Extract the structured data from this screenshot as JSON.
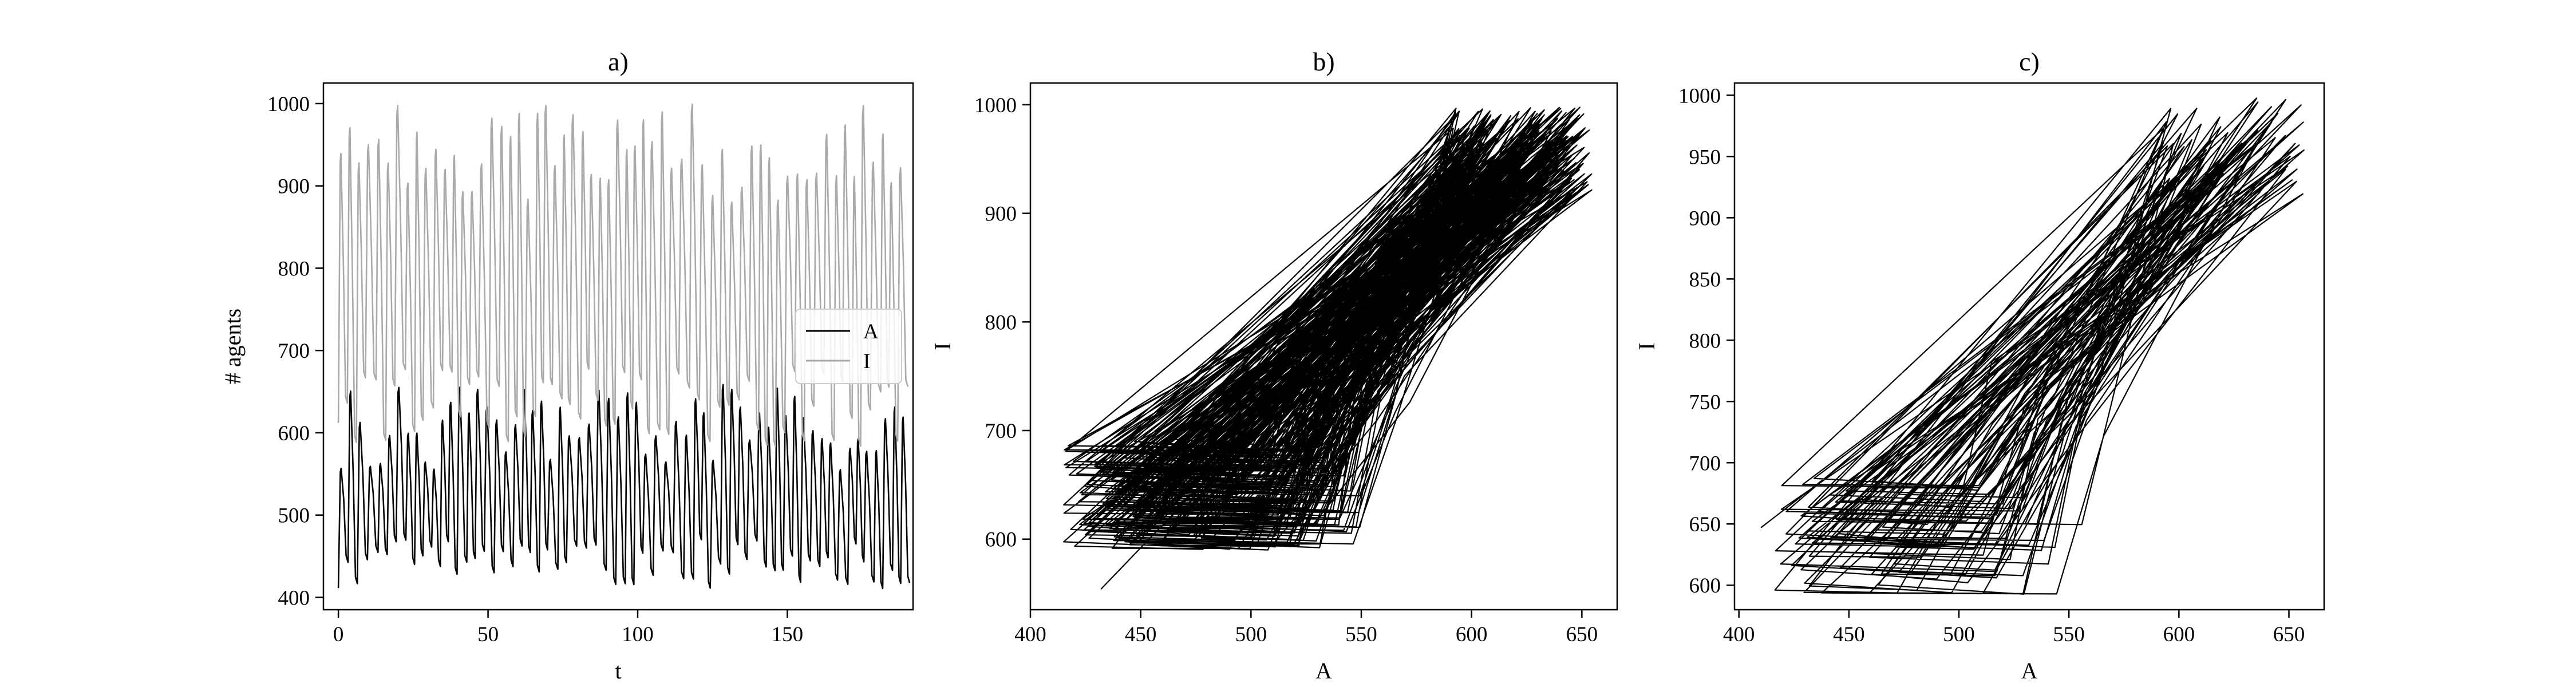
{
  "chart_data": [
    {
      "type": "line",
      "title": "a)",
      "xlabel": "t",
      "ylabel": "# agents",
      "xlim": [
        -5,
        192
      ],
      "ylim": [
        385,
        1025
      ],
      "xticks": [
        0,
        50,
        100,
        150
      ],
      "yticks": [
        400,
        500,
        600,
        700,
        800,
        900,
        1000
      ],
      "legend": {
        "placement": "center-right",
        "entries": [
          "A",
          "I"
        ]
      },
      "series": [
        {
          "name": "A",
          "color": "#000000",
          "period": 3.1,
          "min_range": [
            410,
            470
          ],
          "max_range": [
            555,
            660
          ],
          "t_range": [
            0,
            189
          ]
        },
        {
          "name": "I",
          "color": "#aaaaaa",
          "period": 3.1,
          "min_range": [
            580,
            680
          ],
          "max_range": [
            880,
            1000
          ],
          "t_range": [
            0,
            189
          ]
        }
      ]
    },
    {
      "type": "line",
      "title": "b)",
      "xlabel": "A",
      "ylabel": "I",
      "xlim": [
        400,
        666
      ],
      "ylim": [
        535,
        1020
      ],
      "xticks": [
        400,
        450,
        500,
        550,
        600,
        650
      ],
      "yticks": [
        600,
        700,
        800,
        900,
        1000
      ],
      "series": [
        {
          "name": "",
          "color": "#000000",
          "cycles": 190,
          "start": [
            432,
            554
          ],
          "x_min_range": [
            415,
            480
          ],
          "x_max_range": [
            590,
            655
          ],
          "y_min_range": [
            590,
            685
          ],
          "y_max_range": [
            920,
            998
          ]
        }
      ]
    },
    {
      "type": "line",
      "title": "c)",
      "xlabel": "A",
      "ylabel": "I",
      "xlim": [
        398,
        666
      ],
      "ylim": [
        580,
        1010
      ],
      "xticks": [
        400,
        450,
        500,
        550,
        600,
        650
      ],
      "yticks": [
        600,
        650,
        700,
        750,
        800,
        850,
        900,
        950,
        1000
      ],
      "series": [
        {
          "name": "",
          "color": "#000000",
          "cycles": 60,
          "start": [
            410,
            647
          ],
          "x_min_range": [
            415,
            480
          ],
          "x_max_range": [
            590,
            658
          ],
          "y_min_range": [
            592,
            685
          ],
          "y_max_range": [
            915,
            998
          ]
        }
      ]
    }
  ]
}
